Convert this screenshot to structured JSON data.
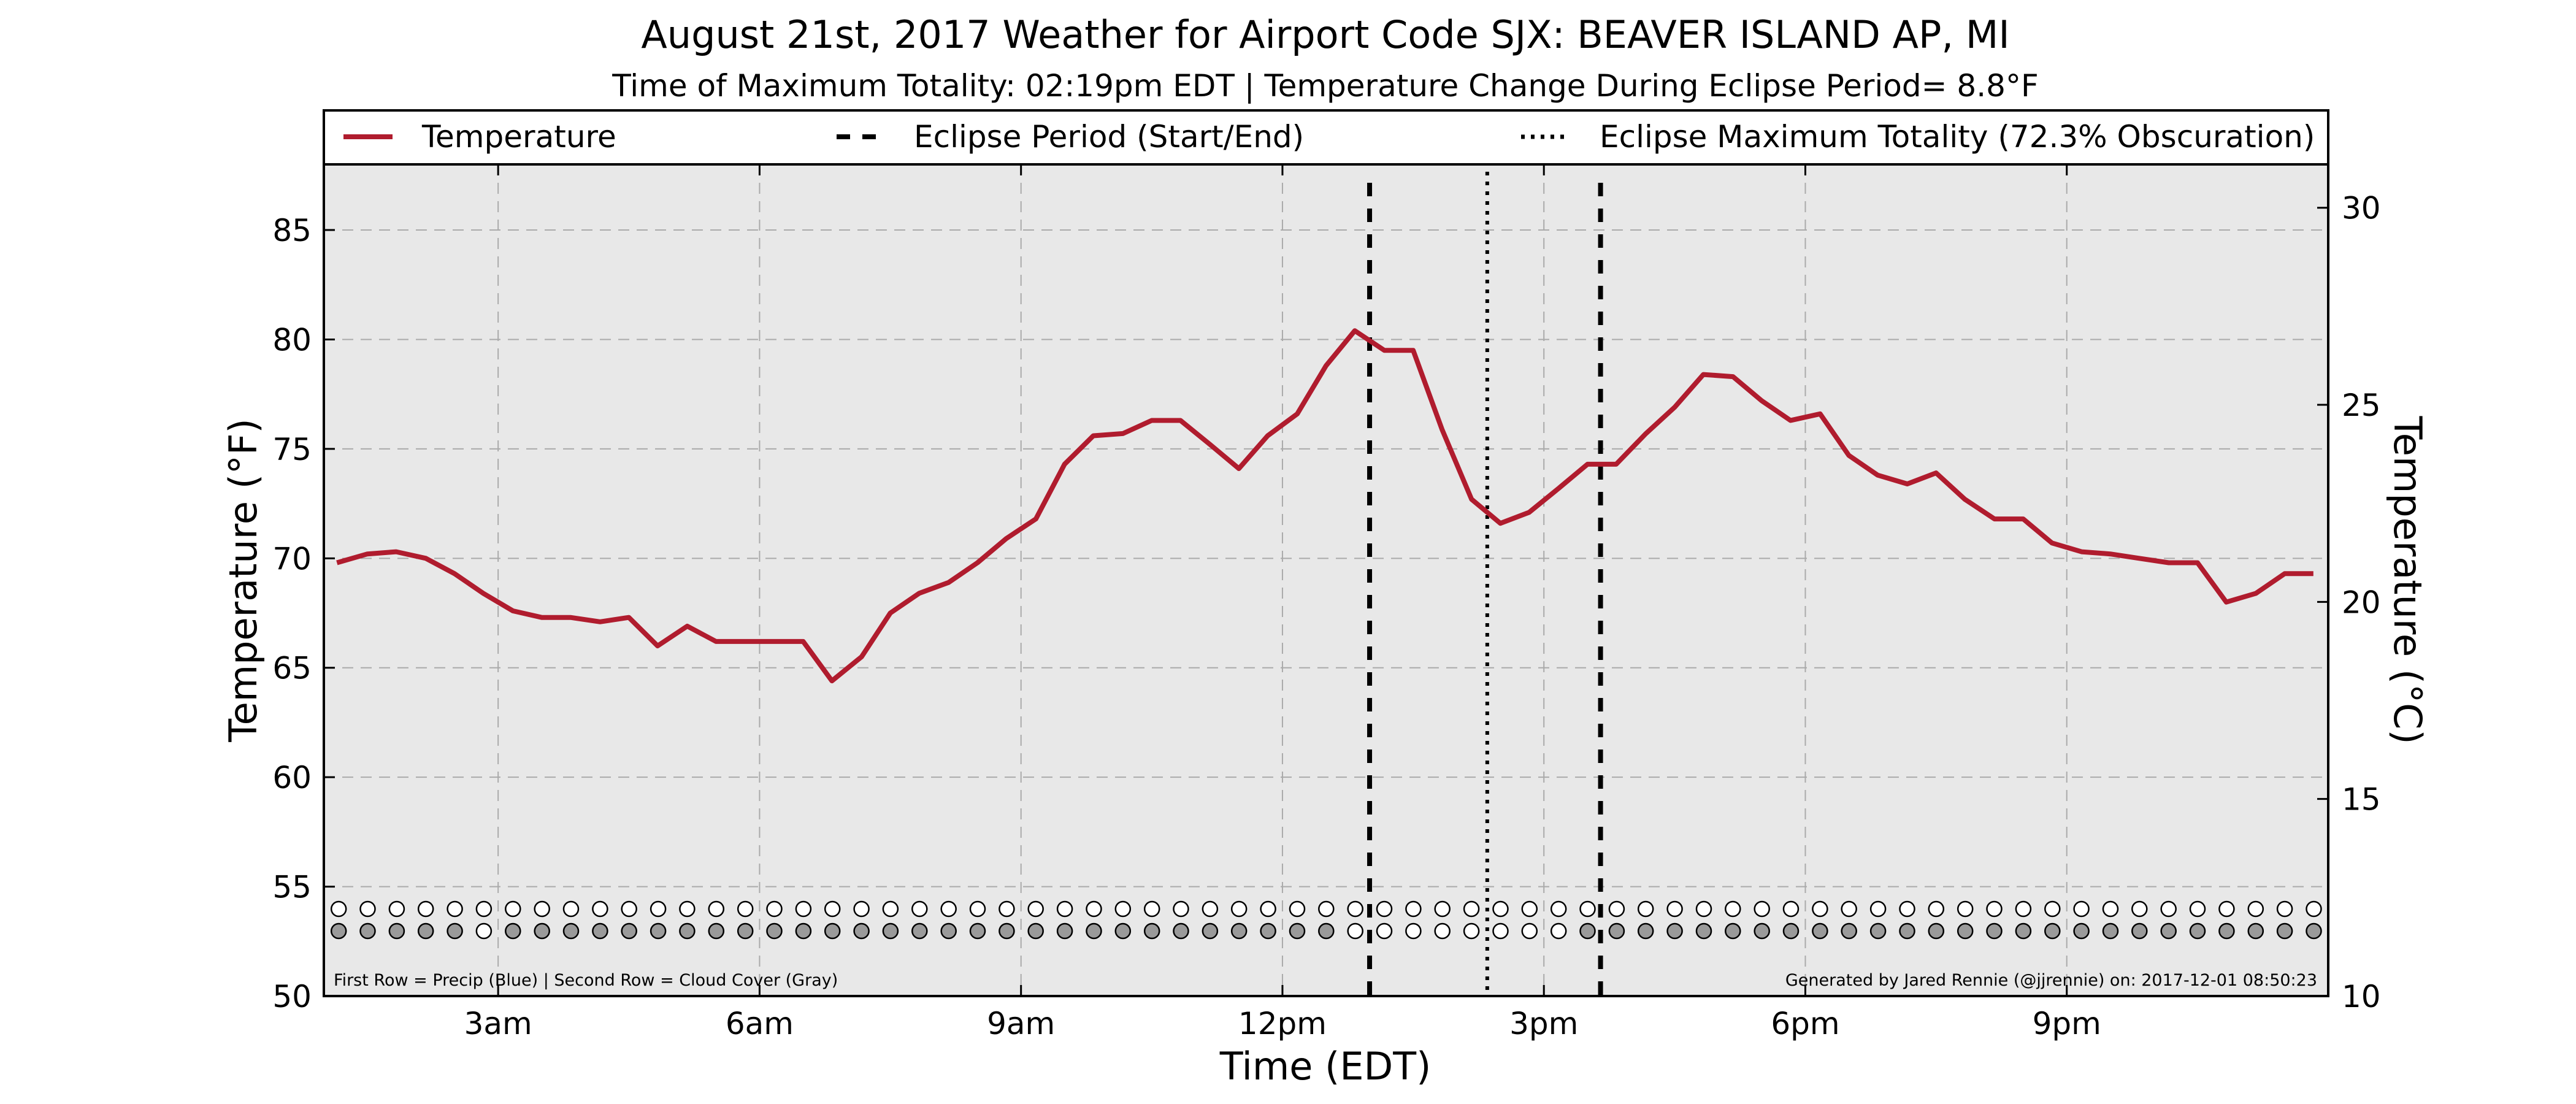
{
  "chart_data": {
    "type": "line",
    "title": "August 21st, 2017 Weather for Airport Code SJX: BEAVER ISLAND AP, MI",
    "subtitle": "Time of Maximum Totality: 02:19pm EDT | Temperature Change During Eclipse Period= 8.8°F",
    "xlabel": "Time (EDT)",
    "ylabel": "Temperature (°F)",
    "ylabel_right": "Temperature (°C)",
    "x_unit": "hours after midnight EDT, August 21 2017",
    "xlim": [
      1,
      24
    ],
    "ylim": [
      50,
      88
    ],
    "ylim_right": [
      10,
      31.1
    ],
    "grid": true,
    "legend_position": "top",
    "colors": {
      "temperature": "#b01c2e",
      "plot_background": "#e8e8e8",
      "cloud_dot": "#9a9a9a"
    },
    "x_ticks": [
      {
        "x": 3,
        "label": "3am"
      },
      {
        "x": 6,
        "label": "6am"
      },
      {
        "x": 9,
        "label": "9am"
      },
      {
        "x": 12,
        "label": "12pm"
      },
      {
        "x": 15,
        "label": "3pm"
      },
      {
        "x": 18,
        "label": "6pm"
      },
      {
        "x": 21,
        "label": "9pm"
      }
    ],
    "y_ticks": [
      50,
      55,
      60,
      65,
      70,
      75,
      80,
      85
    ],
    "y_ticks_right": [
      10,
      15,
      20,
      25,
      30
    ],
    "legend": [
      {
        "label": "Temperature",
        "style": "solid"
      },
      {
        "label": "Eclipse Period (Start/End)",
        "style": "dashed"
      },
      {
        "label": "Eclipse Maximum Totality (72.3% Obscuration)",
        "style": "dotted"
      }
    ],
    "eclipse_start": 13.0,
    "eclipse_max": 14.35,
    "eclipse_end": 15.65,
    "series": [
      {
        "name": "Temperature",
        "x": [
          1.15,
          1.5,
          1.83,
          2.17,
          2.5,
          2.83,
          3.17,
          3.5,
          3.83,
          4.17,
          4.5,
          4.83,
          5.17,
          5.5,
          5.83,
          6.17,
          6.5,
          6.83,
          7.17,
          7.5,
          7.83,
          8.17,
          8.5,
          8.83,
          9.17,
          9.5,
          9.83,
          10.17,
          10.5,
          10.83,
          11.17,
          11.5,
          11.83,
          12.17,
          12.5,
          12.83,
          13.17,
          13.5,
          13.83,
          14.17,
          14.5,
          14.83,
          15.17,
          15.5,
          15.83,
          16.17,
          16.5,
          16.83,
          17.17,
          17.5,
          17.83,
          18.17,
          18.5,
          18.83,
          19.17,
          19.5,
          19.83,
          20.17,
          20.5,
          20.83,
          21.17,
          21.5,
          21.83,
          22.17,
          22.5,
          22.83,
          23.17,
          23.5,
          23.83
        ],
        "y": [
          69.8,
          70.2,
          70.3,
          70.0,
          69.3,
          68.4,
          67.6,
          67.3,
          67.3,
          67.1,
          67.3,
          66.0,
          66.9,
          66.2,
          66.2,
          66.2,
          66.2,
          64.4,
          65.5,
          67.5,
          68.4,
          68.9,
          69.8,
          70.9,
          71.8,
          74.3,
          75.6,
          75.7,
          76.3,
          76.3,
          75.2,
          74.1,
          75.6,
          76.6,
          78.8,
          80.4,
          79.5,
          79.5,
          75.9,
          72.7,
          71.6,
          72.1,
          73.2,
          74.3,
          74.3,
          75.7,
          76.9,
          78.4,
          78.3,
          77.2,
          76.3,
          76.6,
          74.7,
          73.8,
          73.4,
          73.9,
          72.7,
          71.8,
          71.8,
          70.7,
          70.3,
          70.2,
          70.0,
          69.8,
          69.8,
          68.0,
          68.4,
          69.3,
          69.3
        ]
      }
    ],
    "precip_row": {
      "x_start": 1.17,
      "step": 0.3333,
      "count": 69,
      "values": [
        0,
        0,
        0,
        0,
        0,
        0,
        0,
        0,
        0,
        0,
        0,
        0,
        0,
        0,
        0,
        0,
        0,
        0,
        0,
        0,
        0,
        0,
        0,
        0,
        0,
        0,
        0,
        0,
        0,
        0,
        0,
        0,
        0,
        0,
        0,
        0,
        0,
        0,
        0,
        0,
        0,
        0,
        0,
        0,
        0,
        0,
        0,
        0,
        0,
        0,
        0,
        0,
        0,
        0,
        0,
        0,
        0,
        0,
        0,
        0,
        0,
        0,
        0,
        0,
        0,
        0,
        0,
        0,
        0
      ]
    },
    "cloud_row": {
      "x_start": 1.17,
      "step": 0.3333,
      "count": 69,
      "values": [
        1,
        1,
        1,
        1,
        1,
        0,
        1,
        1,
        1,
        1,
        1,
        1,
        1,
        1,
        1,
        1,
        1,
        1,
        1,
        1,
        1,
        1,
        1,
        1,
        1,
        1,
        1,
        1,
        1,
        1,
        1,
        1,
        1,
        1,
        1,
        0,
        0,
        0,
        0,
        0,
        0,
        0,
        0,
        1,
        1,
        1,
        1,
        1,
        1,
        1,
        1,
        1,
        1,
        1,
        1,
        1,
        1,
        1,
        1,
        1,
        1,
        1,
        1,
        1,
        1,
        1,
        1,
        1,
        1
      ]
    },
    "footnote_left": "First Row = Precip (Blue) | Second Row = Cloud Cover (Gray)",
    "footnote_right": "Generated by Jared Rennie (@jjrennie) on: 2017-12-01 08:50:23"
  }
}
